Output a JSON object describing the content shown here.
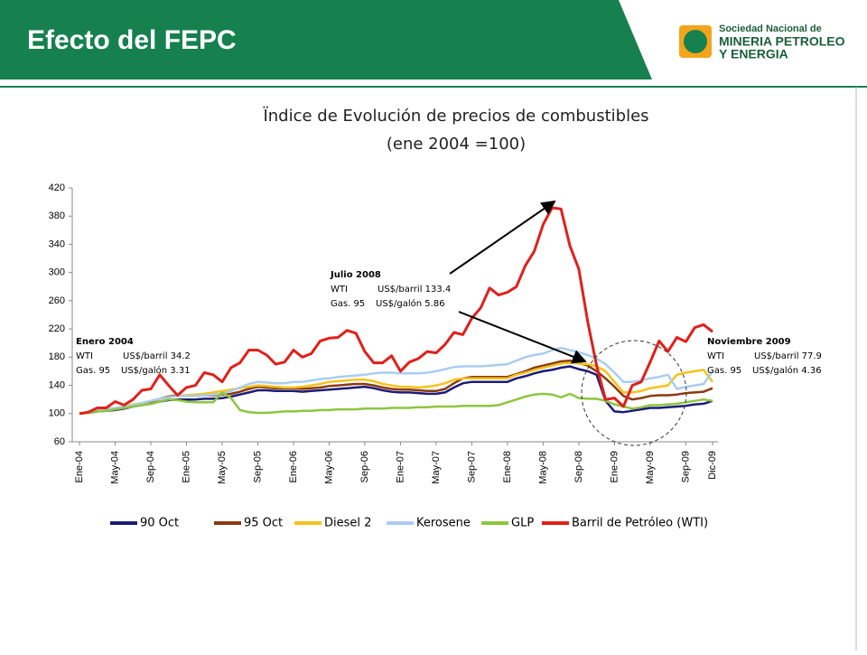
{
  "header": {
    "title": "Efecto del FEPC",
    "logo": [
      "Sociedad Nacional de",
      "MINERIA PETROLEO",
      "Y ENERGIA"
    ]
  },
  "chart_data": {
    "type": "line",
    "title": "Ïndice de Evolución de precios de combustibles",
    "subtitle": "(ene 2004 =100)",
    "categories": [
      "Ene-04",
      null,
      null,
      null,
      "May-04",
      null,
      null,
      null,
      "Sep-04",
      null,
      null,
      null,
      "Ene-05",
      null,
      null,
      null,
      "May-05",
      null,
      null,
      null,
      "Sep-05",
      null,
      null,
      null,
      "Ene-06",
      null,
      null,
      null,
      "May-06",
      null,
      null,
      null,
      "Sep-06",
      null,
      null,
      null,
      "Ene-07",
      null,
      null,
      null,
      "May-07",
      null,
      null,
      null,
      "Sep-07",
      null,
      null,
      null,
      "Ene-08",
      null,
      null,
      null,
      "May-08",
      null,
      null,
      null,
      "Sep-08",
      null,
      null,
      null,
      "Ene-09",
      null,
      null,
      null,
      "May-09",
      null,
      null,
      null,
      "Sep-09",
      null,
      null,
      "Dic-09"
    ],
    "ylim": [
      60,
      420
    ],
    "yticks": [
      60,
      100,
      140,
      180,
      220,
      260,
      300,
      340,
      380,
      420
    ],
    "grid": false,
    "legend": "bottom",
    "series": [
      {
        "name": "90 Oct",
        "color": "#1c1c78",
        "values": [
          100,
          101,
          103,
          104,
          105,
          107,
          110,
          112,
          114,
          117,
          119,
          120,
          120,
          120,
          121,
          121,
          122,
          124,
          127,
          130,
          133,
          133,
          132,
          132,
          132,
          131,
          132,
          133,
          134,
          135,
          136,
          137,
          138,
          136,
          133,
          131,
          130,
          130,
          129,
          128,
          128,
          130,
          137,
          143,
          145,
          145,
          145,
          145,
          145,
          150,
          153,
          157,
          160,
          162,
          165,
          167,
          163,
          160,
          155,
          118,
          103,
          102,
          104,
          106,
          108,
          108,
          109,
          110,
          111,
          113,
          114,
          118
        ]
      },
      {
        "name": "95 Oct",
        "color": "#8b3a10",
        "values": [
          100,
          101,
          104,
          105,
          106,
          108,
          111,
          114,
          117,
          121,
          124,
          126,
          125,
          125,
          126,
          126,
          127,
          128,
          131,
          135,
          138,
          137,
          136,
          136,
          136,
          135,
          136,
          137,
          139,
          140,
          141,
          142,
          142,
          140,
          137,
          135,
          134,
          134,
          133,
          132,
          132,
          135,
          143,
          150,
          152,
          152,
          152,
          152,
          152,
          156,
          160,
          165,
          168,
          171,
          174,
          175,
          172,
          168,
          160,
          150,
          138,
          125,
          120,
          122,
          125,
          126,
          126,
          127,
          129,
          130,
          131,
          136
        ]
      },
      {
        "name": "Diesel 2",
        "color": "#f5c21b",
        "values": [
          100,
          101,
          104,
          105,
          107,
          110,
          113,
          115,
          118,
          121,
          123,
          125,
          126,
          127,
          128,
          130,
          132,
          134,
          136,
          138,
          140,
          139,
          138,
          137,
          137,
          138,
          140,
          142,
          145,
          146,
          147,
          148,
          148,
          146,
          142,
          140,
          138,
          138,
          137,
          138,
          140,
          143,
          148,
          150,
          150,
          150,
          150,
          150,
          150,
          155,
          158,
          162,
          165,
          168,
          171,
          172,
          171,
          170,
          167,
          160,
          145,
          130,
          130,
          132,
          136,
          138,
          140,
          155,
          158,
          160,
          162,
          145
        ]
      },
      {
        "name": "Kerosene",
        "color": "#a9cdf0",
        "values": [
          100,
          102,
          105,
          107,
          108,
          110,
          112,
          115,
          118,
          121,
          123,
          125,
          125,
          125,
          126,
          127,
          128,
          132,
          137,
          142,
          145,
          144,
          143,
          143,
          145,
          145,
          147,
          149,
          150,
          152,
          153,
          154,
          155,
          157,
          158,
          158,
          157,
          157,
          157,
          158,
          160,
          163,
          166,
          167,
          167,
          167,
          168,
          169,
          170,
          175,
          180,
          183,
          185,
          190,
          193,
          190,
          187,
          183,
          178,
          170,
          158,
          145,
          145,
          147,
          150,
          152,
          155,
          135,
          138,
          140,
          142,
          160
        ]
      },
      {
        "name": "GLP",
        "color": "#8dc63f",
        "values": [
          100,
          102,
          103,
          104,
          106,
          108,
          110,
          112,
          114,
          117,
          120,
          119,
          117,
          116,
          116,
          116,
          130,
          122,
          105,
          102,
          101,
          101,
          102,
          103,
          103,
          104,
          104,
          105,
          105,
          106,
          106,
          106,
          107,
          107,
          107,
          108,
          108,
          108,
          109,
          109,
          110,
          110,
          110,
          111,
          111,
          111,
          111,
          112,
          116,
          120,
          124,
          127,
          128,
          127,
          123,
          128,
          122,
          121,
          121,
          118,
          113,
          110,
          107,
          109,
          112,
          112,
          113,
          114,
          116,
          118,
          120,
          118
        ]
      },
      {
        "name": "Barril de Petróleo (WTI)",
        "color": "#e0201b",
        "values": [
          100,
          102,
          108,
          108,
          117,
          112,
          120,
          133,
          135,
          155,
          140,
          126,
          137,
          140,
          158,
          155,
          145,
          165,
          172,
          190,
          190,
          183,
          170,
          173,
          190,
          180,
          185,
          203,
          207,
          208,
          218,
          214,
          188,
          172,
          172,
          182,
          160,
          173,
          178,
          188,
          186,
          198,
          215,
          212,
          235,
          250,
          278,
          268,
          272,
          280,
          310,
          330,
          368,
          392,
          390,
          338,
          305,
          230,
          168,
          120,
          122,
          110,
          140,
          145,
          173,
          203,
          188,
          208,
          202,
          222,
          226,
          216
        ]
      }
    ],
    "annotations": [
      {
        "title": "Enero 2004",
        "rows": [
          [
            "WTI",
            "US$/barril 34.2"
          ],
          [
            "Gas. 95",
            "US$/galón 3.31"
          ]
        ]
      },
      {
        "title": "Julio 2008",
        "rows": [
          [
            "WTI",
            "US$/barril 133.4"
          ],
          [
            "Gas. 95",
            "US$/galón 5.86"
          ]
        ]
      },
      {
        "title": "Noviembre 2009",
        "rows": [
          [
            "WTI",
            "US$/barril 77.9"
          ],
          [
            "Gas. 95",
            "US$/galón 4.36"
          ]
        ]
      }
    ]
  }
}
